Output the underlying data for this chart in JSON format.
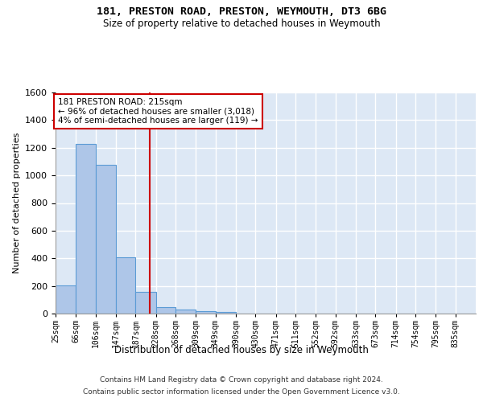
{
  "title1": "181, PRESTON ROAD, PRESTON, WEYMOUTH, DT3 6BG",
  "title2": "Size of property relative to detached houses in Weymouth",
  "xlabel": "Distribution of detached houses by size in Weymouth",
  "ylabel": "Number of detached properties",
  "footnote1": "Contains HM Land Registry data © Crown copyright and database right 2024.",
  "footnote2": "Contains public sector information licensed under the Open Government Licence v3.0.",
  "annotation_line1": "181 PRESTON ROAD: 215sqm",
  "annotation_line2": "← 96% of detached houses are smaller (3,018)",
  "annotation_line3": "4% of semi-detached houses are larger (119) →",
  "bar_color": "#aec6e8",
  "bar_edge_color": "#5b9bd5",
  "vline_color": "#cc0000",
  "vline_x": 215,
  "categories": [
    "25sqm",
    "66sqm",
    "106sqm",
    "147sqm",
    "187sqm",
    "228sqm",
    "268sqm",
    "309sqm",
    "349sqm",
    "390sqm",
    "430sqm",
    "471sqm",
    "511sqm",
    "552sqm",
    "592sqm",
    "633sqm",
    "673sqm",
    "714sqm",
    "754sqm",
    "795sqm",
    "835sqm"
  ],
  "bin_edges": [
    25,
    66,
    106,
    147,
    187,
    228,
    268,
    309,
    349,
    390,
    430,
    471,
    511,
    552,
    592,
    633,
    673,
    714,
    754,
    795,
    835,
    876
  ],
  "bar_heights": [
    205,
    1225,
    1075,
    410,
    160,
    45,
    27,
    18,
    13,
    0,
    0,
    0,
    0,
    0,
    0,
    0,
    0,
    0,
    0,
    0,
    0
  ],
  "ylim": [
    0,
    1600
  ],
  "yticks": [
    0,
    200,
    400,
    600,
    800,
    1000,
    1200,
    1400,
    1600
  ],
  "plot_bg_color": "#dde8f5",
  "grid_color": "#ffffff",
  "fig_bg_color": "#ffffff"
}
